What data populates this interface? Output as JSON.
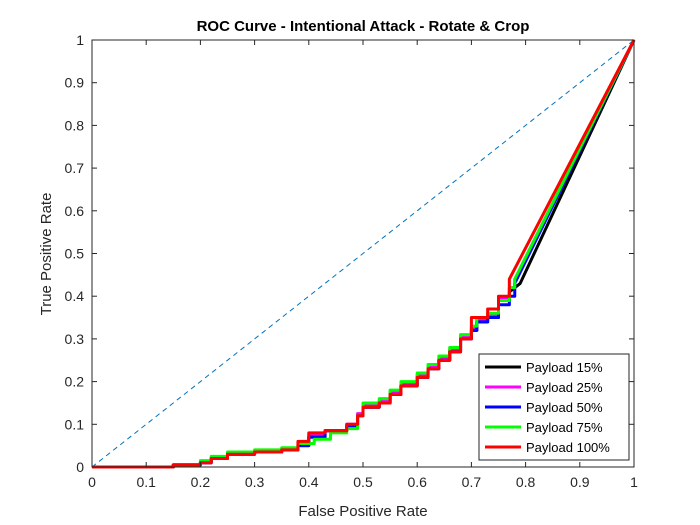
{
  "chart_data": {
    "type": "line",
    "title": "ROC Curve - Intentional Attack - Rotate & Crop",
    "xlabel": "False Positive Rate",
    "ylabel": "True Positive Rate",
    "xlim": [
      0,
      1
    ],
    "ylim": [
      0,
      1
    ],
    "xticks": [
      "0",
      "0.1",
      "0.2",
      "0.3",
      "0.4",
      "0.5",
      "0.6",
      "0.7",
      "0.8",
      "0.9",
      "1"
    ],
    "yticks": [
      "0",
      "0.1",
      "0.2",
      "0.3",
      "0.4",
      "0.5",
      "0.6",
      "0.7",
      "0.8",
      "0.9",
      "1"
    ],
    "grid": false,
    "legend_location": "bottom-right",
    "reference_line": {
      "style": "dashed",
      "color": "#0072BD",
      "points": [
        [
          0,
          0
        ],
        [
          1,
          1
        ]
      ]
    },
    "series": [
      {
        "name": "Payload 15%",
        "color": "#000000",
        "points": [
          [
            0,
            0
          ],
          [
            0.14,
            0
          ],
          [
            0.15,
            0.005
          ],
          [
            0.2,
            0.01
          ],
          [
            0.22,
            0.02
          ],
          [
            0.25,
            0.03
          ],
          [
            0.3,
            0.035
          ],
          [
            0.35,
            0.04
          ],
          [
            0.38,
            0.05
          ],
          [
            0.4,
            0.07
          ],
          [
            0.43,
            0.085
          ],
          [
            0.47,
            0.095
          ],
          [
            0.49,
            0.12
          ],
          [
            0.5,
            0.14
          ],
          [
            0.53,
            0.15
          ],
          [
            0.55,
            0.17
          ],
          [
            0.57,
            0.19
          ],
          [
            0.6,
            0.21
          ],
          [
            0.62,
            0.23
          ],
          [
            0.64,
            0.25
          ],
          [
            0.66,
            0.27
          ],
          [
            0.68,
            0.3
          ],
          [
            0.7,
            0.32
          ],
          [
            0.71,
            0.34
          ],
          [
            0.73,
            0.35
          ],
          [
            0.75,
            0.39
          ],
          [
            0.77,
            0.41
          ],
          [
            0.79,
            0.43
          ],
          [
            1,
            1
          ]
        ]
      },
      {
        "name": "Payload 25%",
        "color": "#FF00FF",
        "points": [
          [
            0,
            0
          ],
          [
            0.14,
            0
          ],
          [
            0.15,
            0.005
          ],
          [
            0.2,
            0.012
          ],
          [
            0.22,
            0.022
          ],
          [
            0.25,
            0.032
          ],
          [
            0.3,
            0.037
          ],
          [
            0.35,
            0.042
          ],
          [
            0.38,
            0.055
          ],
          [
            0.4,
            0.075
          ],
          [
            0.43,
            0.085
          ],
          [
            0.47,
            0.1
          ],
          [
            0.49,
            0.125
          ],
          [
            0.5,
            0.145
          ],
          [
            0.53,
            0.155
          ],
          [
            0.55,
            0.175
          ],
          [
            0.57,
            0.195
          ],
          [
            0.6,
            0.215
          ],
          [
            0.62,
            0.235
          ],
          [
            0.64,
            0.255
          ],
          [
            0.66,
            0.275
          ],
          [
            0.68,
            0.305
          ],
          [
            0.7,
            0.325
          ],
          [
            0.71,
            0.345
          ],
          [
            0.73,
            0.355
          ],
          [
            0.75,
            0.395
          ],
          [
            0.77,
            0.42
          ],
          [
            0.78,
            0.44
          ],
          [
            1,
            1
          ]
        ]
      },
      {
        "name": "Payload 50%",
        "color": "#0000FF",
        "points": [
          [
            0,
            0
          ],
          [
            0.14,
            0
          ],
          [
            0.15,
            0.005
          ],
          [
            0.2,
            0.01
          ],
          [
            0.22,
            0.02
          ],
          [
            0.25,
            0.03
          ],
          [
            0.3,
            0.035
          ],
          [
            0.35,
            0.04
          ],
          [
            0.38,
            0.05
          ],
          [
            0.4,
            0.07
          ],
          [
            0.43,
            0.085
          ],
          [
            0.47,
            0.095
          ],
          [
            0.49,
            0.12
          ],
          [
            0.5,
            0.14
          ],
          [
            0.53,
            0.15
          ],
          [
            0.55,
            0.17
          ],
          [
            0.57,
            0.19
          ],
          [
            0.6,
            0.21
          ],
          [
            0.62,
            0.23
          ],
          [
            0.64,
            0.25
          ],
          [
            0.66,
            0.27
          ],
          [
            0.68,
            0.3
          ],
          [
            0.7,
            0.32
          ],
          [
            0.71,
            0.34
          ],
          [
            0.73,
            0.35
          ],
          [
            0.75,
            0.38
          ],
          [
            0.77,
            0.4
          ],
          [
            0.78,
            0.43
          ],
          [
            1,
            1
          ]
        ]
      },
      {
        "name": "Payload 75%",
        "color": "#00FF00",
        "points": [
          [
            0,
            0
          ],
          [
            0.14,
            0
          ],
          [
            0.15,
            0.005
          ],
          [
            0.2,
            0.015
          ],
          [
            0.22,
            0.025
          ],
          [
            0.25,
            0.035
          ],
          [
            0.3,
            0.04
          ],
          [
            0.35,
            0.045
          ],
          [
            0.38,
            0.055
          ],
          [
            0.41,
            0.065
          ],
          [
            0.44,
            0.08
          ],
          [
            0.47,
            0.09
          ],
          [
            0.49,
            0.12
          ],
          [
            0.5,
            0.15
          ],
          [
            0.53,
            0.16
          ],
          [
            0.55,
            0.18
          ],
          [
            0.57,
            0.2
          ],
          [
            0.6,
            0.22
          ],
          [
            0.62,
            0.24
          ],
          [
            0.64,
            0.26
          ],
          [
            0.66,
            0.28
          ],
          [
            0.68,
            0.31
          ],
          [
            0.7,
            0.33
          ],
          [
            0.71,
            0.35
          ],
          [
            0.73,
            0.36
          ],
          [
            0.75,
            0.39
          ],
          [
            0.77,
            0.42
          ],
          [
            0.78,
            0.44
          ],
          [
            1,
            1
          ]
        ]
      },
      {
        "name": "Payload 100%",
        "color": "#FF0000",
        "points": [
          [
            0,
            0
          ],
          [
            0.14,
            0
          ],
          [
            0.15,
            0.005
          ],
          [
            0.2,
            0.01
          ],
          [
            0.22,
            0.02
          ],
          [
            0.25,
            0.03
          ],
          [
            0.3,
            0.035
          ],
          [
            0.35,
            0.04
          ],
          [
            0.38,
            0.06
          ],
          [
            0.4,
            0.08
          ],
          [
            0.43,
            0.085
          ],
          [
            0.47,
            0.1
          ],
          [
            0.49,
            0.12
          ],
          [
            0.5,
            0.14
          ],
          [
            0.53,
            0.15
          ],
          [
            0.55,
            0.17
          ],
          [
            0.57,
            0.19
          ],
          [
            0.6,
            0.21
          ],
          [
            0.62,
            0.23
          ],
          [
            0.64,
            0.25
          ],
          [
            0.66,
            0.27
          ],
          [
            0.68,
            0.3
          ],
          [
            0.7,
            0.35
          ],
          [
            0.73,
            0.37
          ],
          [
            0.75,
            0.4
          ],
          [
            0.77,
            0.44
          ],
          [
            1,
            1
          ]
        ]
      }
    ]
  }
}
